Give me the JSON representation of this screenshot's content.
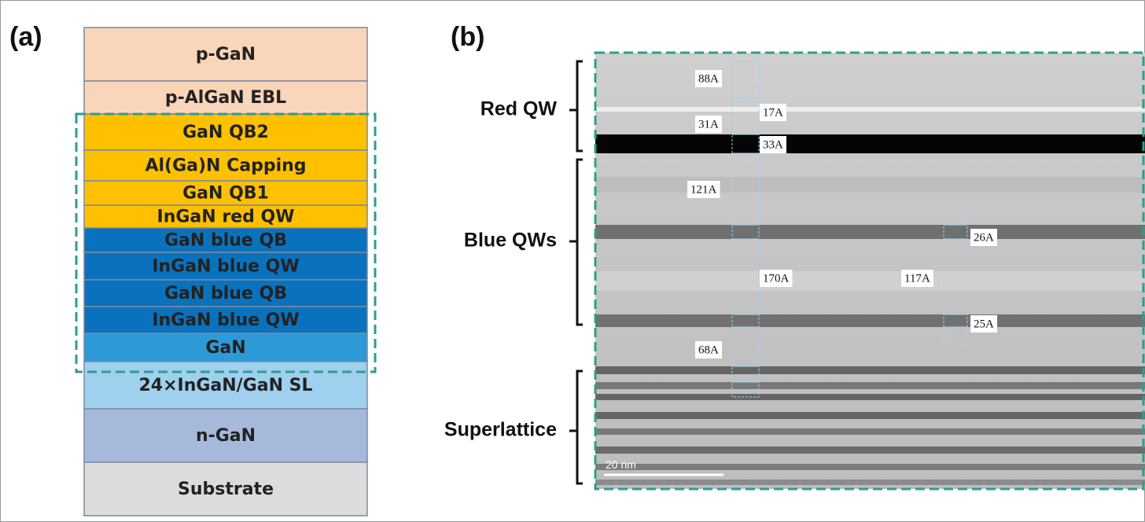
{
  "panel_a": {
    "label": "(a)",
    "layers": [
      "p-GaN",
      "p-AlGaN EBL",
      "GaN QB2",
      "Al(Ga)N Capping",
      "GaN QB1",
      "InGaN red QW",
      "GaN blue QB",
      "InGaN blue QW",
      "GaN blue QB",
      "InGaN blue QW",
      "GaN",
      "24×InGaN/GaN SL",
      "n-GaN",
      "Substrate"
    ]
  },
  "panel_b": {
    "label": "(b)",
    "regions": [
      "Red QW",
      "Blue QWs",
      "Superlattice"
    ],
    "measurements": [
      "88A",
      "17A",
      "31A",
      "33A",
      "121A",
      "26A",
      "170A",
      "117A",
      "25A",
      "68A"
    ],
    "scale_bar": "20 nm"
  }
}
